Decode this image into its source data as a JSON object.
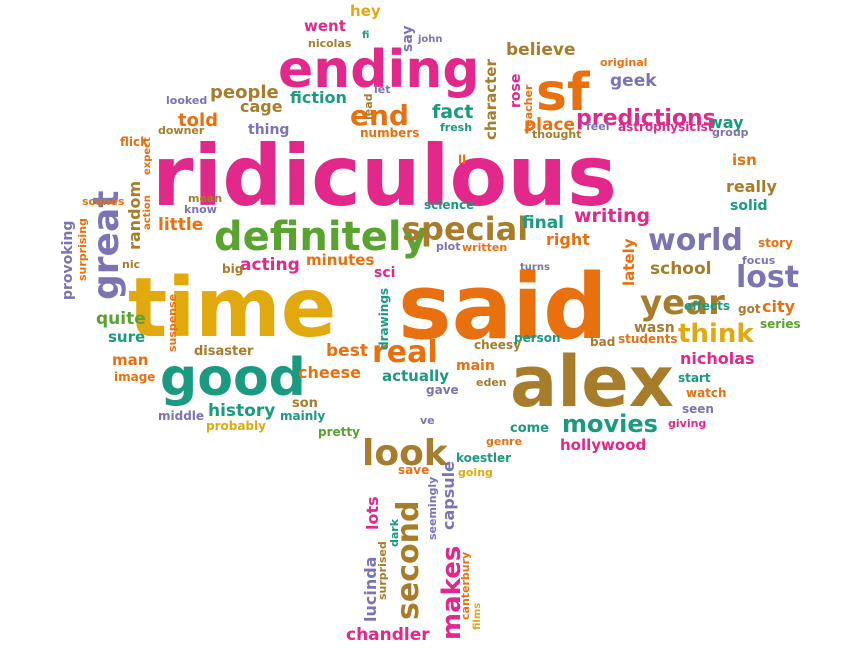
{
  "palette": {
    "pink": "#e2288a",
    "orange": "#e8700f",
    "gold": "#e2a90f",
    "green": "#58a42f",
    "teal": "#1a9a7f",
    "purple": "#7a74b5",
    "brown": "#a77c2a"
  },
  "words": [
    {
      "text": "ridiculous",
      "color": "pink"
    },
    {
      "text": "said",
      "color": "orange"
    },
    {
      "text": "time",
      "color": "gold"
    },
    {
      "text": "alex",
      "color": "brown"
    },
    {
      "text": "good",
      "color": "teal"
    },
    {
      "text": "ending",
      "color": "pink"
    },
    {
      "text": "definitely",
      "color": "green"
    },
    {
      "text": "sf",
      "color": "orange"
    },
    {
      "text": "special",
      "color": "brown"
    },
    {
      "text": "world",
      "color": "purple"
    },
    {
      "text": "year",
      "color": "brown"
    },
    {
      "text": "real",
      "color": "orange"
    },
    {
      "text": "look",
      "color": "brown"
    },
    {
      "text": "lost",
      "color": "purple"
    },
    {
      "text": "great",
      "color": "purple"
    },
    {
      "text": "predictions",
      "color": "pink"
    },
    {
      "text": "end",
      "color": "orange"
    },
    {
      "text": "think",
      "color": "gold"
    },
    {
      "text": "movies",
      "color": "teal"
    },
    {
      "text": "second",
      "color": "brown"
    },
    {
      "text": "makes",
      "color": "pink"
    },
    {
      "text": "history",
      "color": "teal"
    },
    {
      "text": "people",
      "color": "brown"
    },
    {
      "text": "fiction",
      "color": "teal"
    },
    {
      "text": "cage",
      "color": "brown"
    },
    {
      "text": "told",
      "color": "orange"
    },
    {
      "text": "thing",
      "color": "purple"
    },
    {
      "text": "fact",
      "color": "teal"
    },
    {
      "text": "place",
      "color": "orange"
    },
    {
      "text": "believe",
      "color": "brown"
    },
    {
      "text": "character",
      "color": "brown"
    },
    {
      "text": "geek",
      "color": "purple"
    },
    {
      "text": "way",
      "color": "teal"
    },
    {
      "text": "isn",
      "color": "orange"
    },
    {
      "text": "really",
      "color": "brown"
    },
    {
      "text": "solid",
      "color": "teal"
    },
    {
      "text": "writing",
      "color": "pink"
    },
    {
      "text": "final",
      "color": "teal"
    },
    {
      "text": "right",
      "color": "orange"
    },
    {
      "text": "lately",
      "color": "orange"
    },
    {
      "text": "school",
      "color": "brown"
    },
    {
      "text": "acting",
      "color": "pink"
    },
    {
      "text": "minutes",
      "color": "orange"
    },
    {
      "text": "little",
      "color": "orange"
    },
    {
      "text": "quite",
      "color": "green"
    },
    {
      "text": "sure",
      "color": "teal"
    },
    {
      "text": "random",
      "color": "brown"
    },
    {
      "text": "best",
      "color": "orange"
    },
    {
      "text": "cheese",
      "color": "orange"
    },
    {
      "text": "actually",
      "color": "teal"
    },
    {
      "text": "main",
      "color": "orange"
    },
    {
      "text": "cheesy",
      "color": "brown"
    },
    {
      "text": "bad",
      "color": "brown"
    },
    {
      "text": "students",
      "color": "orange"
    },
    {
      "text": "nicholas",
      "color": "pink"
    },
    {
      "text": "wasn",
      "color": "brown"
    },
    {
      "text": "city",
      "color": "orange"
    },
    {
      "text": "effects",
      "color": "teal"
    },
    {
      "text": "got",
      "color": "brown"
    },
    {
      "text": "series",
      "color": "green"
    },
    {
      "text": "story",
      "color": "orange"
    },
    {
      "text": "focus",
      "color": "purple"
    },
    {
      "text": "start",
      "color": "teal"
    },
    {
      "text": "watch",
      "color": "orange"
    },
    {
      "text": "seen",
      "color": "purple"
    },
    {
      "text": "giving",
      "color": "pink"
    },
    {
      "text": "hollywood",
      "color": "pink"
    },
    {
      "text": "come",
      "color": "teal"
    },
    {
      "text": "genre",
      "color": "orange"
    },
    {
      "text": "koestler",
      "color": "teal"
    },
    {
      "text": "going",
      "color": "gold"
    },
    {
      "text": "capsule",
      "color": "purple"
    },
    {
      "text": "save",
      "color": "orange"
    },
    {
      "text": "lots",
      "color": "pink"
    },
    {
      "text": "lucinda",
      "color": "purple"
    },
    {
      "text": "chandler",
      "color": "pink"
    },
    {
      "text": "canterbury",
      "color": "orange"
    },
    {
      "text": "films",
      "color": "gold"
    },
    {
      "text": "surprised",
      "color": "brown"
    },
    {
      "text": "dark",
      "color": "teal"
    },
    {
      "text": "seemingly",
      "color": "purple"
    },
    {
      "text": "pretty",
      "color": "green"
    },
    {
      "text": "ve",
      "color": "purple"
    },
    {
      "text": "eden",
      "color": "brown"
    },
    {
      "text": "gave",
      "color": "purple"
    },
    {
      "text": "person",
      "color": "teal"
    },
    {
      "text": "son",
      "color": "brown"
    },
    {
      "text": "mainly",
      "color": "teal"
    },
    {
      "text": "probably",
      "color": "gold"
    },
    {
      "text": "middle",
      "color": "purple"
    },
    {
      "text": "image",
      "color": "orange"
    },
    {
      "text": "man",
      "color": "orange"
    },
    {
      "text": "disaster",
      "color": "brown"
    },
    {
      "text": "suspense",
      "color": "orange"
    },
    {
      "text": "provoking",
      "color": "purple"
    },
    {
      "text": "surprising",
      "color": "orange"
    },
    {
      "text": "nic",
      "color": "brown"
    },
    {
      "text": "big",
      "color": "brown"
    },
    {
      "text": "scenes",
      "color": "orange"
    },
    {
      "text": "action",
      "color": "orange"
    },
    {
      "text": "expect",
      "color": "orange"
    },
    {
      "text": "mean",
      "color": "brown"
    },
    {
      "text": "know",
      "color": "purple"
    },
    {
      "text": "flick",
      "color": "orange"
    },
    {
      "text": "downer",
      "color": "brown"
    },
    {
      "text": "looked",
      "color": "purple"
    },
    {
      "text": "went",
      "color": "pink"
    },
    {
      "text": "nicolas",
      "color": "brown"
    },
    {
      "text": "hey",
      "color": "gold"
    },
    {
      "text": "fi",
      "color": "teal"
    },
    {
      "text": "say",
      "color": "purple"
    },
    {
      "text": "john",
      "color": "purple"
    },
    {
      "text": "let",
      "color": "purple"
    },
    {
      "text": "lead",
      "color": "brown"
    },
    {
      "text": "numbers",
      "color": "orange"
    },
    {
      "text": "fresh",
      "color": "teal"
    },
    {
      "text": "rose",
      "color": "pink"
    },
    {
      "text": "teacher",
      "color": "orange"
    },
    {
      "text": "thought",
      "color": "brown"
    },
    {
      "text": "feel",
      "color": "purple"
    },
    {
      "text": "astrophysicist",
      "color": "pink"
    },
    {
      "text": "original",
      "color": "orange"
    },
    {
      "text": "group",
      "color": "purple"
    },
    {
      "text": "science",
      "color": "teal"
    },
    {
      "text": "ll",
      "color": "orange"
    },
    {
      "text": "plot",
      "color": "purple"
    },
    {
      "text": "written",
      "color": "orange"
    },
    {
      "text": "turns",
      "color": "purple"
    },
    {
      "text": "sci",
      "color": "pink"
    },
    {
      "text": "drawings",
      "color": "teal"
    }
  ]
}
